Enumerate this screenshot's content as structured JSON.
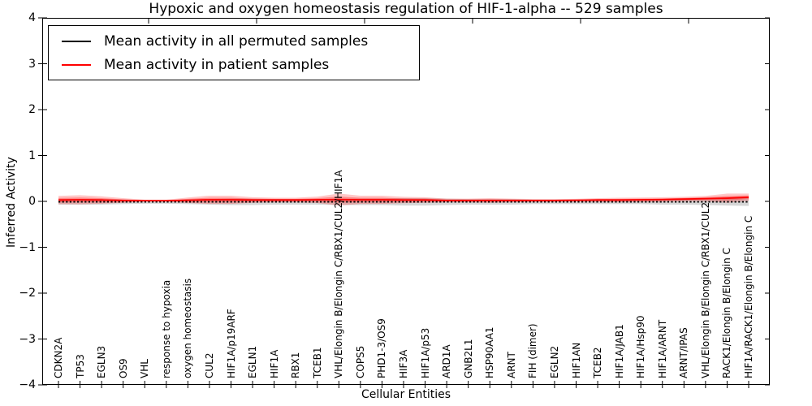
{
  "title": "Hypoxic and oxygen homeostasis regulation of HIF-1-alpha -- 529 samples",
  "chart_data": {
    "type": "line",
    "title": "Hypoxic and oxygen homeostasis regulation of HIF-1-alpha -- 529 samples",
    "xlabel": "Cellular Entities",
    "ylabel": "Inferred Activity",
    "ylim": [
      -4,
      4
    ],
    "grid": false,
    "legend_position": "upper left",
    "ytick_values": [
      4,
      3,
      2,
      1,
      0,
      -1,
      -2,
      -3,
      -4
    ],
    "ytick_labels": [
      "4",
      "3",
      "2",
      "1",
      "0",
      "−1",
      "−2",
      "−3",
      "−4"
    ],
    "categories": [
      "CDKN2A",
      "TP53",
      "EGLN3",
      "OS9",
      "VHL",
      "response to hypoxia",
      "oxygen homeostasis",
      "CUL2",
      "HIF1A/p19ARF",
      "EGLN1",
      "HIF1A",
      "RBX1",
      "TCEB1",
      "VHL/Elongin B/Elongin C/RBX1/CUL2/HIF1A",
      "COPS5",
      "PHD1-3/OS9",
      "HIF3A",
      "HIF1A/p53",
      "ARD1A",
      "GNB2L1",
      "HSP90AA1",
      "ARNT",
      "FIH (dimer)",
      "EGLN2",
      "HIF1AN",
      "TCEB2",
      "HIF1A/JAB1",
      "HIF1A/Hsp90",
      "HIF1A/ARNT",
      "ARNT/IPAS",
      "VHL/Elongin B/Elongin C/RBX1/CUL2",
      "RACK1/Elongin B/Elongin C",
      "HIF1A/RACK1/Elongin B/Elongin C"
    ],
    "legend": [
      {
        "label": "Mean activity in all permuted samples",
        "color": "#000000",
        "style": "solid"
      },
      {
        "label": "Mean activity in patient samples",
        "color": "#ff0000",
        "style": "solid"
      }
    ],
    "series": [
      {
        "name": "Mean activity in all permuted samples",
        "color": "#000000",
        "style": "dotted",
        "values": [
          -0.01,
          -0.01,
          -0.01,
          -0.01,
          -0.01,
          -0.01,
          -0.01,
          -0.01,
          -0.01,
          -0.01,
          -0.01,
          -0.01,
          -0.01,
          -0.01,
          -0.01,
          -0.01,
          -0.01,
          -0.01,
          -0.01,
          -0.01,
          -0.01,
          -0.01,
          -0.01,
          -0.01,
          -0.01,
          -0.01,
          -0.01,
          -0.01,
          -0.01,
          -0.01,
          -0.01,
          -0.01,
          -0.01
        ]
      },
      {
        "name": "Mean activity in patient samples",
        "color": "#ff0000",
        "style": "solid",
        "values": [
          0.03,
          0.035,
          0.03,
          0.02,
          0.015,
          0.015,
          0.025,
          0.035,
          0.035,
          0.03,
          0.03,
          0.03,
          0.035,
          0.04,
          0.035,
          0.035,
          0.03,
          0.03,
          0.02,
          0.02,
          0.02,
          0.02,
          0.02,
          0.02,
          0.025,
          0.03,
          0.03,
          0.035,
          0.04,
          0.05,
          0.06,
          0.07,
          0.09
        ]
      }
    ],
    "bands": [
      {
        "name": "permuted-samples-spread",
        "series_index": 0,
        "color": "rgba(120,120,120,0.30)",
        "halfwidths": [
          0.06,
          0.06,
          0.06,
          0.05,
          0.04,
          0.04,
          0.05,
          0.06,
          0.07,
          0.07,
          0.06,
          0.06,
          0.06,
          0.07,
          0.07,
          0.07,
          0.08,
          0.08,
          0.07,
          0.06,
          0.06,
          0.06,
          0.05,
          0.05,
          0.05,
          0.05,
          0.05,
          0.05,
          0.06,
          0.06,
          0.07,
          0.08,
          0.09
        ]
      },
      {
        "name": "patient-samples-spread",
        "series_index": 1,
        "color": "rgba(255,0,0,0.22)",
        "halfwidths": [
          0.09,
          0.1,
          0.08,
          0.05,
          0.02,
          0.02,
          0.06,
          0.09,
          0.09,
          0.06,
          0.05,
          0.05,
          0.07,
          0.13,
          0.09,
          0.09,
          0.07,
          0.06,
          0.04,
          0.04,
          0.05,
          0.04,
          0.03,
          0.03,
          0.03,
          0.04,
          0.05,
          0.05,
          0.05,
          0.05,
          0.06,
          0.1,
          0.08
        ]
      },
      {
        "name": "patient-samples-spread-inner",
        "series_index": 1,
        "color": "rgba(255,0,0,0.30)",
        "halfwidths": [
          0.045,
          0.05,
          0.04,
          0.025,
          0.01,
          0.01,
          0.03,
          0.045,
          0.045,
          0.03,
          0.025,
          0.025,
          0.035,
          0.065,
          0.045,
          0.045,
          0.035,
          0.03,
          0.02,
          0.02,
          0.025,
          0.02,
          0.015,
          0.015,
          0.015,
          0.02,
          0.025,
          0.025,
          0.025,
          0.025,
          0.03,
          0.05,
          0.04
        ]
      }
    ]
  }
}
